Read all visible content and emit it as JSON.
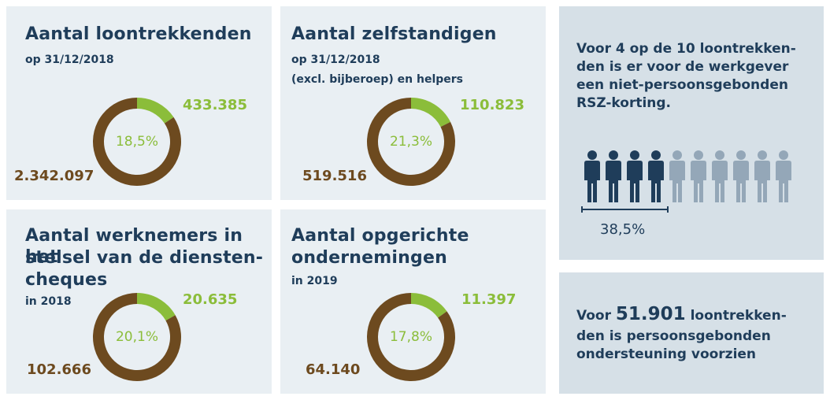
{
  "chart_data": [
    {
      "type": "pie",
      "title": "Aantal loontrekkenden",
      "subtitle_lines": [
        "op 31/12/2018"
      ],
      "slices": [
        {
          "value": 433385,
          "color": "#8bbd3a"
        },
        {
          "value": 2342097,
          "color": "#6d4a1f"
        }
      ],
      "percent_label": "18,5%",
      "labels": {
        "green": "433.385",
        "brown": "2.342.097"
      },
      "percent": 18.5
    },
    {
      "type": "pie",
      "title": "Aantal zelfstandigen",
      "subtitle_lines": [
        "op 31/12/2018",
        "(excl. bijberoep) en helpers"
      ],
      "slices": [
        {
          "value": 110823,
          "color": "#8bbd3a"
        },
        {
          "value": 519516,
          "color": "#6d4a1f"
        }
      ],
      "percent_label": "21,3%",
      "labels": {
        "green": "110.823",
        "brown": "519.516"
      },
      "percent": 21.3
    },
    {
      "type": "pie",
      "title_lines": [
        "Aantal werknemers in het",
        "stelsel van de diensten-",
        "cheques"
      ],
      "subtitle_lines": [
        "in 2018"
      ],
      "slices": [
        {
          "value": 20635,
          "color": "#8bbd3a"
        },
        {
          "value": 102666,
          "color": "#6d4a1f"
        }
      ],
      "percent_label": "20,1%",
      "labels": {
        "green": "20.635",
        "brown": "102.666"
      },
      "percent": 20.1
    },
    {
      "type": "pie",
      "title_lines": [
        "Aantal opgerichte",
        "ondernemingen"
      ],
      "subtitle_lines": [
        "in 2019"
      ],
      "slices": [
        {
          "value": 11397,
          "color": "#8bbd3a"
        },
        {
          "value": 64140,
          "color": "#6d4a1f"
        }
      ],
      "percent_label": "17,8%",
      "labels": {
        "green": "11.397",
        "brown": "64.140"
      },
      "percent": 17.8
    }
  ],
  "side1": {
    "text_lines": [
      "Voor 4 op de 10 loontrekken-",
      "den is er voor de werkgever",
      "een niet-persoonsgebonden",
      "RSZ-korting."
    ],
    "figures_total": 10,
    "figures_highlighted": 4,
    "percent_label": "38,5%",
    "colors": {
      "highlight": "#1f3d5a",
      "muted": "#94a7b8"
    }
  },
  "side2": {
    "prefix": "Voor ",
    "number": "51.901",
    "suffix": " loontrekken-",
    "lines": [
      "den is persoonsgebonden",
      "ondersteuning voorzien"
    ]
  },
  "colors": {
    "green": "#8bbd3a",
    "brown": "#6d4a1f",
    "navy": "#1f3d5a"
  }
}
